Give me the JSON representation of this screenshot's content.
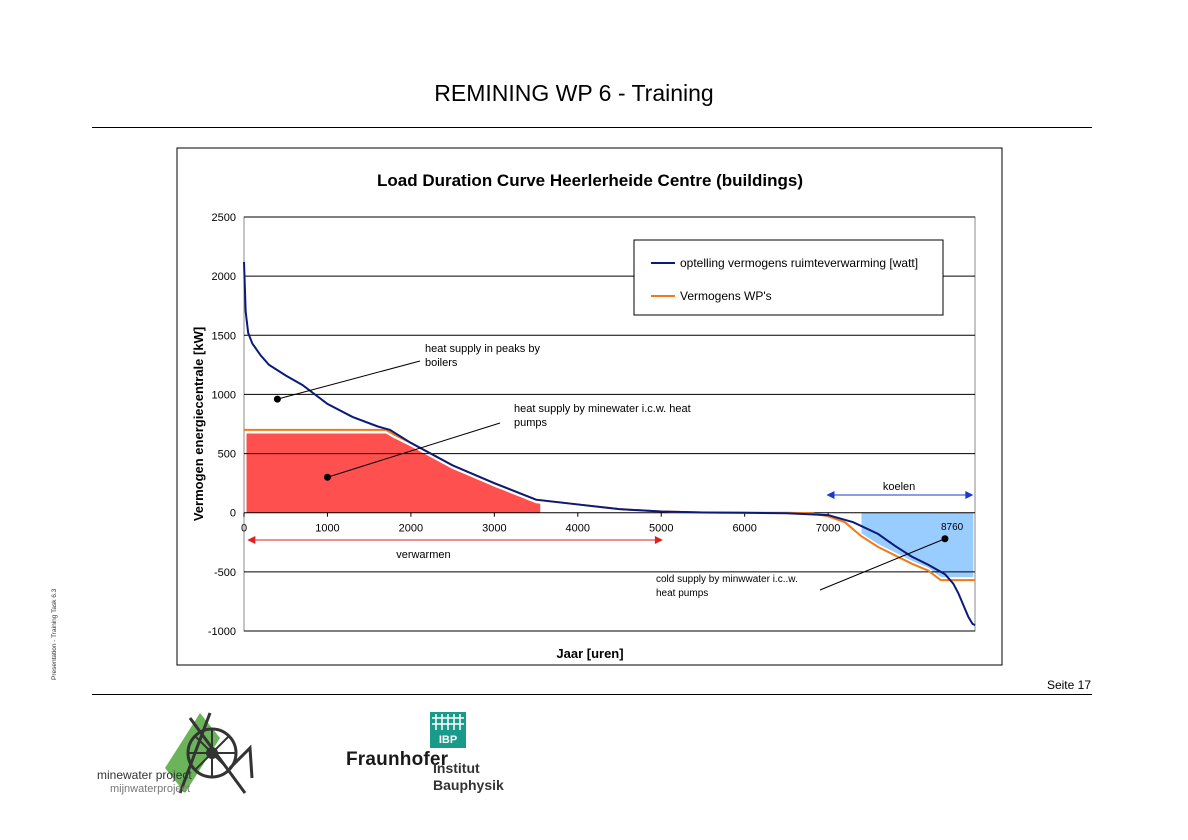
{
  "slide": {
    "title": "REMINING WP 6 - Training",
    "side_note": "Presentation - Training Task 6.3",
    "page_label": "Seite 17"
  },
  "chart_data": {
    "type": "line",
    "title": "Load Duration Curve Heerlerheide Centre (buildings)",
    "xlabel": "Jaar [uren]",
    "ylabel": "Vermogen energiecentrale [kW]",
    "xlim": [
      0,
      8760
    ],
    "ylim": [
      -1000,
      2500
    ],
    "xticks": [
      0,
      1000,
      2000,
      3000,
      4000,
      5000,
      6000,
      7000
    ],
    "yticks": [
      -1000,
      -500,
      0,
      500,
      1000,
      1500,
      2000,
      2500
    ],
    "grid": true,
    "legend_position": "top-right",
    "series": [
      {
        "name": "optelling vermogens ruimteverwarming [watt]",
        "color": "#0a1a7a",
        "x": [
          0,
          20,
          50,
          100,
          200,
          300,
          500,
          700,
          1000,
          1300,
          1600,
          1750,
          2000,
          2500,
          3000,
          3500,
          4000,
          4500,
          5000,
          5500,
          6000,
          6500,
          7000,
          7300,
          7600,
          7800,
          8000,
          8200,
          8400,
          8500,
          8560,
          8620,
          8680,
          8730,
          8760
        ],
        "values": [
          2120,
          1700,
          1520,
          1430,
          1330,
          1250,
          1160,
          1080,
          920,
          810,
          730,
          700,
          590,
          400,
          250,
          110,
          70,
          30,
          10,
          2,
          0,
          -5,
          -20,
          -80,
          -180,
          -280,
          -370,
          -440,
          -520,
          -600,
          -680,
          -780,
          -880,
          -940,
          -950
        ]
      },
      {
        "name": "Vermogens WP's",
        "color": "#f07a1a",
        "x": [
          0,
          1700,
          1800,
          2000,
          2500,
          3000,
          3500,
          4000,
          4500,
          5000,
          5500,
          6000,
          6500,
          6800,
          7000,
          7200,
          7400,
          7600,
          7800,
          8000,
          8200,
          8350,
          8500,
          8760
        ],
        "values": [
          700,
          700,
          660,
          590,
          400,
          250,
          110,
          70,
          30,
          10,
          2,
          0,
          0,
          -5,
          -30,
          -80,
          -200,
          -290,
          -360,
          -430,
          -490,
          -570,
          -570,
          -570
        ]
      }
    ],
    "annotations": [
      {
        "text": "heat supply in peaks by boilers"
      },
      {
        "text": "heat supply by minewater i.c.w. heat pumps"
      },
      {
        "text": "cold supply by minwwater i.c..w. heat pumps"
      },
      {
        "text": "verwarmen"
      },
      {
        "text": "koelen"
      },
      {
        "text": "8760"
      }
    ]
  },
  "logos": {
    "minewater_line1": "minewater project",
    "minewater_line2": "mijnwaterproject",
    "fraunhofer_word": "Fraunhofer",
    "fraunhofer_badge": "IBP",
    "fraunhofer_inst1": "Institut",
    "fraunhofer_inst2": "Bauphysik"
  }
}
